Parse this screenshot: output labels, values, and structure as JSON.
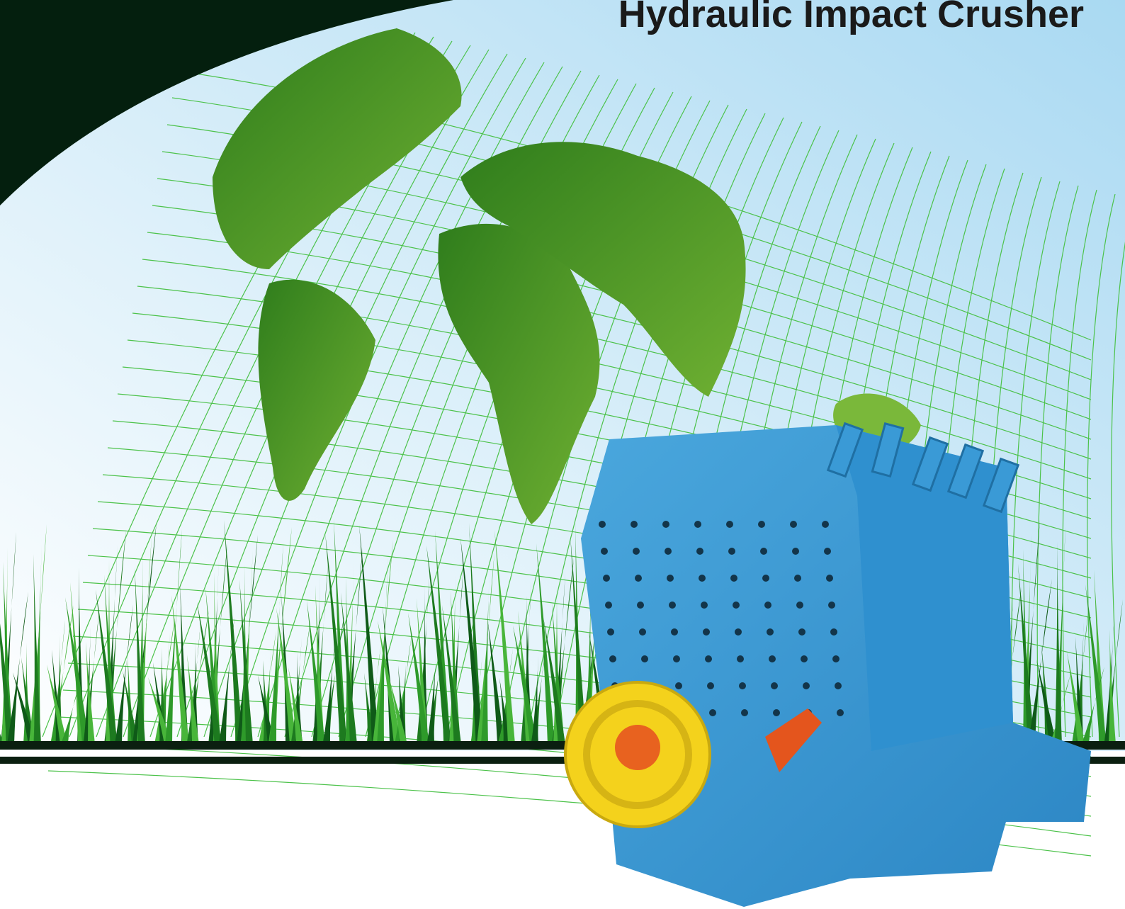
{
  "title": "Hydraulic Impact Crusher"
}
